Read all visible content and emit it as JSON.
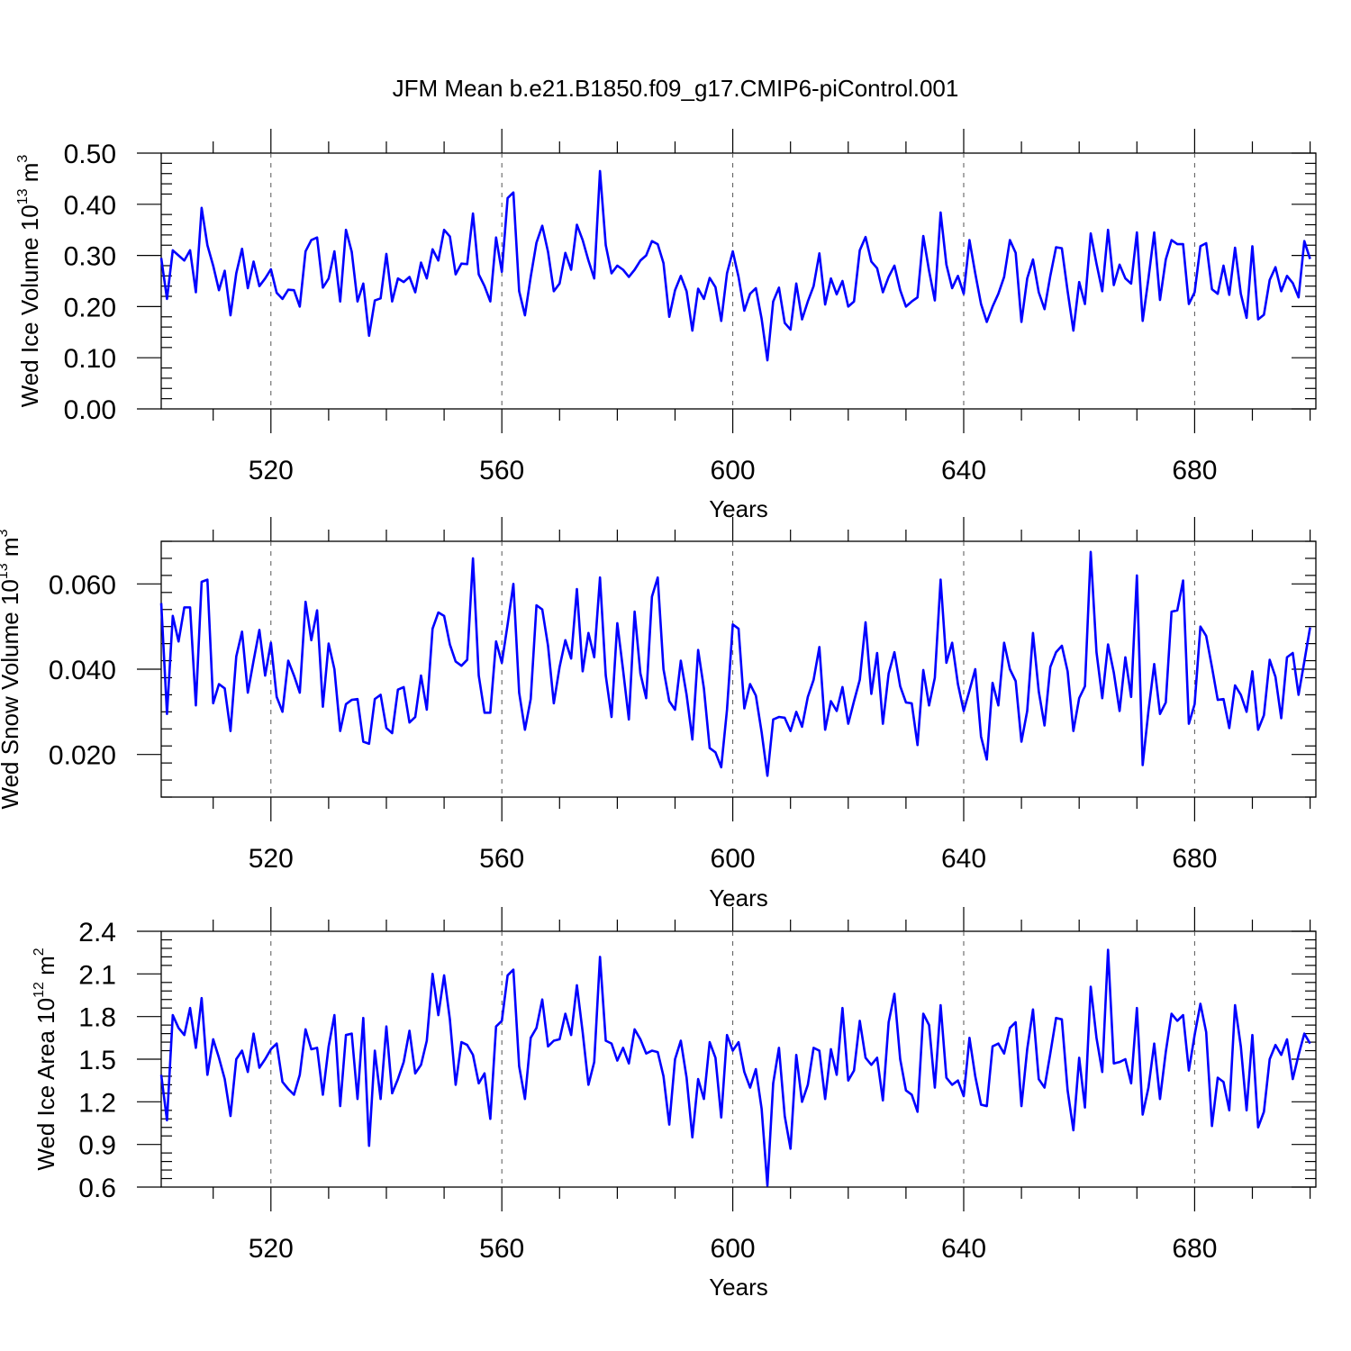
{
  "figure_title": "JFM Mean b.e21.B1850.f09_g17.CMIP6-piControl.001",
  "colors": {
    "series": "#0000ff",
    "axes": "#000000"
  },
  "chart_data": [
    {
      "type": "line",
      "title": "JFM Mean b.e21.B1850.f09_g17.CMIP6-piControl.001",
      "ylabel": "Wed Ice Volume 10",
      "ylabel_exp": "13",
      "ylabel_unit": " m",
      "ylabel_unit_exp": "3",
      "xlabel": "Years",
      "xlim": [
        501,
        701
      ],
      "ylim": [
        0.0,
        0.5
      ],
      "xticks": [
        520,
        560,
        600,
        640,
        680
      ],
      "yticks": [
        0.0,
        0.1,
        0.2,
        0.3,
        0.4,
        0.5
      ],
      "ytick_labels": [
        "0.00",
        "0.10",
        "0.20",
        "0.30",
        "0.40",
        "0.50"
      ],
      "grid": "dashed vertical at major x ticks",
      "series": [
        {
          "color": "#0000ff",
          "x_start": 501,
          "values": [
            0.295,
            0.215,
            0.31,
            0.3,
            0.29,
            0.31,
            0.228,
            0.393,
            0.32,
            0.28,
            0.232,
            0.27,
            0.183,
            0.265,
            0.313,
            0.236,
            0.288,
            0.24,
            0.255,
            0.273,
            0.227,
            0.215,
            0.233,
            0.232,
            0.2,
            0.308,
            0.33,
            0.335,
            0.237,
            0.255,
            0.308,
            0.21,
            0.35,
            0.307,
            0.21,
            0.245,
            0.143,
            0.212,
            0.216,
            0.303,
            0.21,
            0.255,
            0.248,
            0.258,
            0.228,
            0.286,
            0.255,
            0.312,
            0.29,
            0.35,
            0.337,
            0.263,
            0.284,
            0.283,
            0.382,
            0.263,
            0.24,
            0.21,
            0.335,
            0.268,
            0.412,
            0.423,
            0.23,
            0.183,
            0.258,
            0.325,
            0.358,
            0.307,
            0.23,
            0.245,
            0.305,
            0.272,
            0.36,
            0.33,
            0.29,
            0.255,
            0.465,
            0.32,
            0.265,
            0.28,
            0.272,
            0.258,
            0.272,
            0.29,
            0.3,
            0.328,
            0.322,
            0.285,
            0.18,
            0.232,
            0.26,
            0.23,
            0.153,
            0.235,
            0.215,
            0.256,
            0.238,
            0.172,
            0.265,
            0.308,
            0.258,
            0.192,
            0.225,
            0.236,
            0.176,
            0.095,
            0.21,
            0.237,
            0.168,
            0.155,
            0.245,
            0.175,
            0.21,
            0.24,
            0.304,
            0.204,
            0.255,
            0.224,
            0.25,
            0.2,
            0.21,
            0.31,
            0.336,
            0.288,
            0.275,
            0.228,
            0.258,
            0.28,
            0.232,
            0.2,
            0.21,
            0.218,
            0.338,
            0.27,
            0.212,
            0.384,
            0.282,
            0.236,
            0.26,
            0.225,
            0.33,
            0.265,
            0.205,
            0.17,
            0.2,
            0.225,
            0.258,
            0.33,
            0.305,
            0.17,
            0.255,
            0.292,
            0.228,
            0.195,
            0.26,
            0.316,
            0.314,
            0.23,
            0.153,
            0.248,
            0.205,
            0.343,
            0.284,
            0.23,
            0.35,
            0.242,
            0.282,
            0.255,
            0.245,
            0.345,
            0.172,
            0.255,
            0.345,
            0.213,
            0.292,
            0.33,
            0.322,
            0.322,
            0.205,
            0.228,
            0.318,
            0.324,
            0.234,
            0.225,
            0.28,
            0.223,
            0.315,
            0.225,
            0.178,
            0.318,
            0.175,
            0.184,
            0.252,
            0.277,
            0.23,
            0.26,
            0.246,
            0.218,
            0.328,
            0.293
          ]
        }
      ]
    },
    {
      "type": "line",
      "ylabel": "Wed Snow Volume 10",
      "ylabel_exp": "13",
      "ylabel_unit": " m",
      "ylabel_unit_exp": "3",
      "xlabel": "Years",
      "xlim": [
        501,
        701
      ],
      "ylim": [
        0.01,
        0.07
      ],
      "xticks": [
        520,
        560,
        600,
        640,
        680
      ],
      "yticks": [
        0.02,
        0.04,
        0.06
      ],
      "ytick_labels": [
        "0.020",
        "0.040",
        "0.060"
      ],
      "grid": "dashed vertical at major x ticks",
      "series": [
        {
          "color": "#0000ff",
          "x_start": 501,
          "values": [
            0.0555,
            0.0295,
            0.0525,
            0.0465,
            0.0545,
            0.0545,
            0.0315,
            0.0605,
            0.061,
            0.032,
            0.0365,
            0.0355,
            0.0255,
            0.043,
            0.0488,
            0.0345,
            0.042,
            0.0492,
            0.0385,
            0.0462,
            0.0335,
            0.03,
            0.042,
            0.0385,
            0.0345,
            0.0558,
            0.0468,
            0.0538,
            0.0312,
            0.046,
            0.04,
            0.0255,
            0.0318,
            0.0328,
            0.033,
            0.023,
            0.0225,
            0.033,
            0.034,
            0.0262,
            0.025,
            0.0352,
            0.0358,
            0.0275,
            0.0288,
            0.0385,
            0.0305,
            0.0495,
            0.0533,
            0.0525,
            0.0458,
            0.0418,
            0.0408,
            0.0422,
            0.066,
            0.0385,
            0.0298,
            0.0298,
            0.0465,
            0.0415,
            0.0505,
            0.06,
            0.0345,
            0.0258,
            0.033,
            0.055,
            0.054,
            0.0455,
            0.032,
            0.0405,
            0.0468,
            0.0425,
            0.0588,
            0.0395,
            0.0485,
            0.0428,
            0.0615,
            0.0385,
            0.0288,
            0.0508,
            0.0398,
            0.0282,
            0.0535,
            0.039,
            0.0332,
            0.057,
            0.0615,
            0.04,
            0.0325,
            0.0305,
            0.042,
            0.034,
            0.0235,
            0.0445,
            0.0355,
            0.0215,
            0.0205,
            0.017,
            0.0305,
            0.0505,
            0.0495,
            0.0308,
            0.0365,
            0.0338,
            0.0252,
            0.015,
            0.0282,
            0.0288,
            0.0286,
            0.0255,
            0.03,
            0.0265,
            0.0335,
            0.0375,
            0.0452,
            0.0258,
            0.0325,
            0.0302,
            0.0358,
            0.0272,
            0.0325,
            0.0375,
            0.051,
            0.0342,
            0.0438,
            0.0272,
            0.039,
            0.044,
            0.036,
            0.0322,
            0.032,
            0.0222,
            0.0398,
            0.0315,
            0.038,
            0.061,
            0.0415,
            0.0462,
            0.0365,
            0.0302,
            0.035,
            0.04,
            0.0242,
            0.0188,
            0.0368,
            0.0315,
            0.0462,
            0.04,
            0.0372,
            0.023,
            0.0302,
            0.0485,
            0.0348,
            0.0268,
            0.0405,
            0.044,
            0.0455,
            0.0395,
            0.0255,
            0.0332,
            0.036,
            0.0675,
            0.044,
            0.0332,
            0.0458,
            0.0392,
            0.0302,
            0.0428,
            0.0335,
            0.062,
            0.0175,
            0.0302,
            0.0412,
            0.0295,
            0.0322,
            0.0535,
            0.0538,
            0.0608,
            0.0272,
            0.0318,
            0.05,
            0.0478,
            0.0405,
            0.0328,
            0.033,
            0.0262,
            0.0362,
            0.034,
            0.03,
            0.0395,
            0.0258,
            0.0292,
            0.0422,
            0.0382,
            0.0285,
            0.0428,
            0.0438,
            0.034,
            0.0418,
            0.0498
          ]
        }
      ]
    },
    {
      "type": "line",
      "ylabel": "Wed Ice Area 10",
      "ylabel_exp": "12",
      "ylabel_unit": " m",
      "ylabel_unit_exp": "2",
      "xlabel": "Years",
      "xlim": [
        501,
        701
      ],
      "ylim": [
        0.6,
        2.4
      ],
      "xticks": [
        520,
        560,
        600,
        640,
        680
      ],
      "yticks": [
        0.6,
        0.9,
        1.2,
        1.5,
        1.8,
        2.1,
        2.4
      ],
      "ytick_labels": [
        "0.6",
        "0.9",
        "1.2",
        "1.5",
        "1.8",
        "2.1",
        "2.4"
      ],
      "grid": "dashed vertical at major x ticks",
      "series": [
        {
          "color": "#0000ff",
          "x_start": 501,
          "values": [
            1.39,
            1.07,
            1.81,
            1.72,
            1.67,
            1.86,
            1.58,
            1.93,
            1.39,
            1.64,
            1.51,
            1.36,
            1.1,
            1.5,
            1.56,
            1.41,
            1.68,
            1.44,
            1.5,
            1.57,
            1.61,
            1.34,
            1.29,
            1.25,
            1.39,
            1.71,
            1.57,
            1.58,
            1.25,
            1.59,
            1.81,
            1.17,
            1.67,
            1.68,
            1.22,
            1.79,
            0.89,
            1.56,
            1.22,
            1.73,
            1.26,
            1.36,
            1.48,
            1.7,
            1.4,
            1.46,
            1.63,
            2.1,
            1.81,
            2.09,
            1.78,
            1.32,
            1.62,
            1.6,
            1.53,
            1.33,
            1.4,
            1.08,
            1.73,
            1.77,
            2.09,
            2.13,
            1.45,
            1.22,
            1.65,
            1.72,
            1.92,
            1.59,
            1.63,
            1.64,
            1.82,
            1.67,
            2.02,
            1.69,
            1.32,
            1.48,
            2.22,
            1.63,
            1.61,
            1.49,
            1.58,
            1.47,
            1.71,
            1.64,
            1.54,
            1.56,
            1.55,
            1.38,
            1.04,
            1.5,
            1.63,
            1.37,
            0.95,
            1.36,
            1.22,
            1.62,
            1.51,
            1.09,
            1.67,
            1.56,
            1.62,
            1.41,
            1.3,
            1.43,
            1.15,
            0.61,
            1.33,
            1.58,
            1.1,
            0.87,
            1.53,
            1.2,
            1.32,
            1.58,
            1.56,
            1.22,
            1.57,
            1.39,
            1.86,
            1.35,
            1.42,
            1.77,
            1.51,
            1.46,
            1.51,
            1.21,
            1.76,
            1.96,
            1.5,
            1.28,
            1.25,
            1.13,
            1.82,
            1.74,
            1.3,
            1.88,
            1.37,
            1.32,
            1.35,
            1.24,
            1.65,
            1.38,
            1.18,
            1.17,
            1.59,
            1.61,
            1.54,
            1.72,
            1.76,
            1.17,
            1.57,
            1.85,
            1.36,
            1.3,
            1.54,
            1.79,
            1.78,
            1.28,
            1.0,
            1.51,
            1.16,
            2.01,
            1.65,
            1.41,
            2.27,
            1.47,
            1.48,
            1.5,
            1.33,
            1.86,
            1.11,
            1.3,
            1.61,
            1.22,
            1.55,
            1.82,
            1.77,
            1.81,
            1.42,
            1.67,
            1.89,
            1.69,
            1.03,
            1.37,
            1.34,
            1.14,
            1.88,
            1.59,
            1.14,
            1.67,
            1.02,
            1.13,
            1.5,
            1.6,
            1.53,
            1.64,
            1.36,
            1.53,
            1.68,
            1.61
          ]
        }
      ]
    }
  ]
}
